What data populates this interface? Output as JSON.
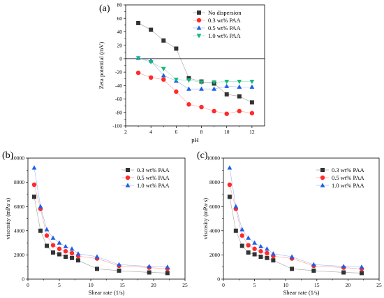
{
  "chart_data": [
    {
      "panel": "(a)",
      "type": "line",
      "xlabel": "pH",
      "ylabel": "Zeta potential (mV)",
      "xlim": [
        2,
        13
      ],
      "ylim": [
        -100,
        80
      ],
      "xticks": [
        2,
        4,
        6,
        8,
        10,
        12
      ],
      "yticks": [
        -100,
        -80,
        -60,
        -40,
        -20,
        0,
        20,
        40,
        60,
        80
      ],
      "zero_line": true,
      "legend_position": "top-right",
      "series": [
        {
          "name": "No dispersion",
          "marker": "square",
          "color": "#333333",
          "x": [
            3,
            4,
            5,
            6,
            7,
            8,
            9,
            10,
            11,
            12
          ],
          "y": [
            53,
            43,
            27,
            15,
            -29,
            -34,
            -37,
            -53,
            -56,
            -65
          ]
        },
        {
          "name": "0.3 wt% PAA",
          "marker": "circle",
          "color": "#ff2a2a",
          "x": [
            3,
            4,
            5,
            6,
            7,
            8,
            9,
            10,
            11,
            12
          ],
          "y": [
            -21,
            -28,
            -31,
            -49,
            -68,
            -72,
            -78,
            -82,
            -78,
            -81
          ]
        },
        {
          "name": "0.5 wt% PAA",
          "marker": "triangle-up",
          "color": "#1f5fe6",
          "x": [
            3,
            4,
            5,
            6,
            7,
            8,
            9,
            10,
            11,
            12
          ],
          "y": [
            1,
            -3,
            -25,
            -33,
            -45,
            -45,
            -45,
            -41,
            -42,
            -42
          ]
        },
        {
          "name": "1.0 wt% PAA",
          "marker": "triangle-down",
          "color": "#14b87a",
          "x": [
            3,
            4,
            5,
            6,
            7,
            8,
            9,
            10,
            11,
            12
          ],
          "y": [
            1,
            -5,
            -15,
            -31,
            -32,
            -35,
            -35,
            -34,
            -34,
            -34
          ]
        }
      ]
    },
    {
      "panel": "(b)",
      "type": "line",
      "xlabel": "Shear rate (1/s)",
      "ylabel": "viscosity (mPa·s)",
      "xlim": [
        0,
        25
      ],
      "ylim": [
        0,
        10000
      ],
      "xticks": [
        0,
        5,
        10,
        15,
        20,
        25
      ],
      "yticks": [
        0,
        2000,
        4000,
        6000,
        8000,
        10000
      ],
      "legend_position": "top-right",
      "series": [
        {
          "name": "0.3 wt% PAA",
          "marker": "square",
          "color": "#333333",
          "x": [
            1,
            2,
            3,
            4,
            5,
            6,
            7,
            8,
            11,
            14.5,
            19.3,
            22.2
          ],
          "y": [
            6800,
            4000,
            2750,
            2200,
            2050,
            1850,
            1750,
            1550,
            850,
            700,
            550,
            500
          ]
        },
        {
          "name": "0.5 wt% PAA",
          "marker": "circle",
          "color": "#ff2a2a",
          "x": [
            1,
            2,
            3,
            4,
            5,
            6,
            7,
            8,
            11,
            14.5,
            19.3,
            22.2
          ],
          "y": [
            7800,
            5800,
            3600,
            2800,
            2500,
            2300,
            2150,
            1900,
            1700,
            1100,
            950,
            850
          ]
        },
        {
          "name": "1.0 wt% PAA",
          "marker": "triangle-up",
          "color": "#1f5fe6",
          "x": [
            1,
            2,
            3,
            4,
            5,
            6,
            7,
            8,
            11,
            14.5,
            19.3,
            22.2
          ],
          "y": [
            9200,
            6000,
            4100,
            3400,
            3000,
            2700,
            2500,
            2100,
            1850,
            1200,
            1050,
            1000
          ]
        }
      ]
    },
    {
      "panel": "(c)",
      "type": "line",
      "xlabel": "Shear rate (1/s)",
      "ylabel": "viscosity (mPa·s)",
      "xlim": [
        0,
        25
      ],
      "ylim": [
        0,
        10000
      ],
      "xticks": [
        0,
        5,
        10,
        15,
        20,
        25
      ],
      "yticks": [
        0,
        2000,
        4000,
        6000,
        8000,
        10000
      ],
      "legend_position": "top-right",
      "series": [
        {
          "name": "0.3 wt% PAA",
          "marker": "square",
          "color": "#333333",
          "x": [
            1,
            2,
            3,
            4,
            5,
            6,
            7,
            8,
            11,
            14.5,
            19.3,
            22.2
          ],
          "y": [
            6800,
            4000,
            2750,
            2200,
            2050,
            1850,
            1750,
            1550,
            850,
            700,
            550,
            500
          ]
        },
        {
          "name": "0.5 wt% PAA",
          "marker": "circle",
          "color": "#ff2a2a",
          "x": [
            1,
            2,
            3,
            4,
            5,
            6,
            7,
            8,
            11,
            14.5,
            19.3,
            22.2
          ],
          "y": [
            7800,
            5800,
            3600,
            2800,
            2500,
            2300,
            2150,
            1900,
            1700,
            1100,
            950,
            850
          ]
        },
        {
          "name": "1.0 wt% PAA",
          "marker": "triangle-up",
          "color": "#1f5fe6",
          "x": [
            1,
            2,
            3,
            4,
            5,
            6,
            7,
            8,
            11,
            14.5,
            19.3,
            22.2
          ],
          "y": [
            9200,
            6000,
            4100,
            3400,
            3000,
            2700,
            2500,
            2100,
            1850,
            1200,
            1050,
            1000
          ]
        }
      ]
    }
  ]
}
